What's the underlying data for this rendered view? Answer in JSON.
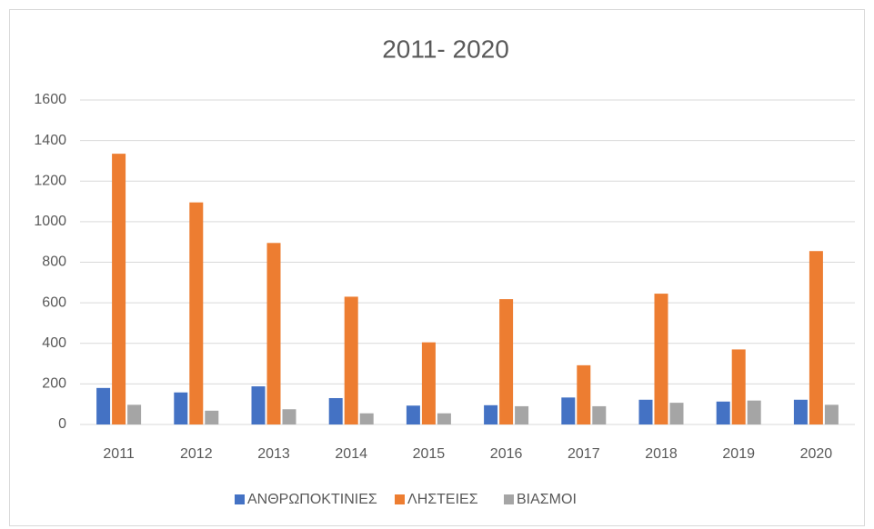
{
  "chart_data": {
    "type": "bar",
    "title": "2011- 2020",
    "categories": [
      "2011",
      "2012",
      "2013",
      "2014",
      "2015",
      "2016",
      "2017",
      "2018",
      "2019",
      "2020"
    ],
    "series": [
      {
        "name": "ΑΝΘΡΩΠΟΚΤΙΝΙΕΣ",
        "color": "#4472c4",
        "values": [
          180,
          158,
          188,
          130,
          93,
          95,
          133,
          122,
          113,
          122
        ]
      },
      {
        "name": "ΛΗΣΤΕΙΕΣ",
        "color": "#ed7d31",
        "values": [
          1335,
          1095,
          895,
          630,
          405,
          618,
          292,
          645,
          370,
          855
        ]
      },
      {
        "name": "ΒΙΑΣΜΟΙ",
        "color": "#a5a5a5",
        "values": [
          97,
          68,
          75,
          55,
          55,
          90,
          90,
          107,
          118,
          97
        ]
      }
    ],
    "ylim": [
      0,
      1600
    ],
    "yticks": [
      0,
      200,
      400,
      600,
      800,
      1000,
      1200,
      1400,
      1600
    ],
    "grid": true,
    "legend": "bottom"
  }
}
